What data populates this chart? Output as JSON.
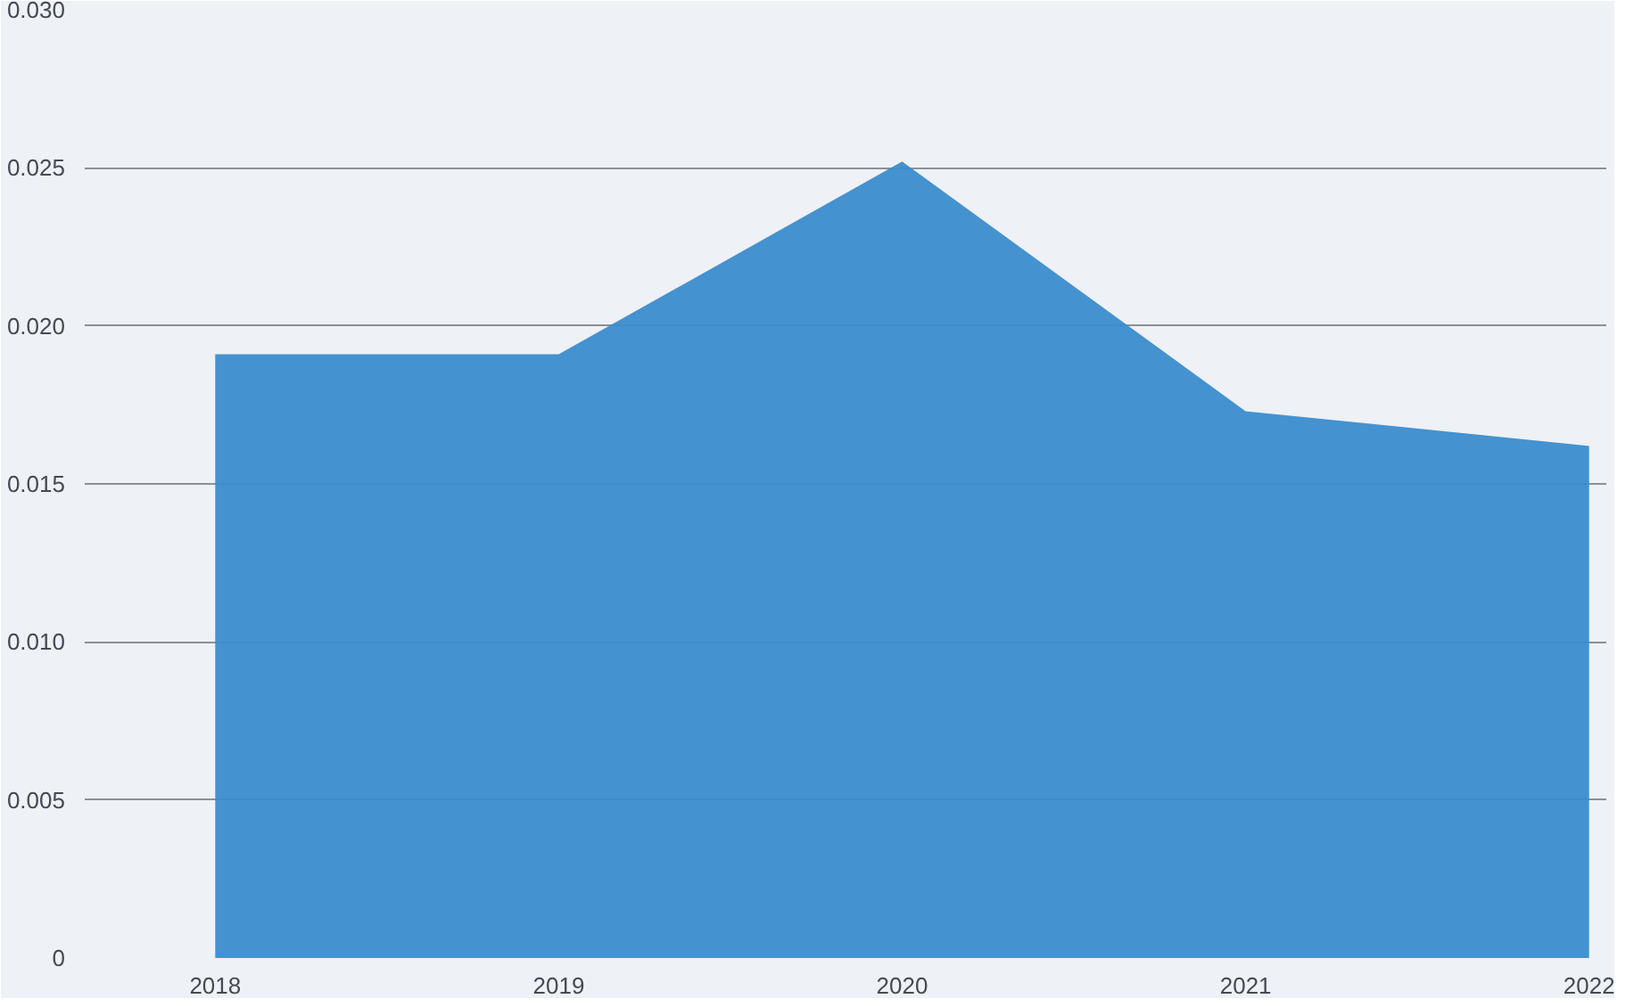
{
  "chart_data": {
    "type": "area",
    "x": [
      2018,
      2019,
      2020,
      2021,
      2022
    ],
    "values": [
      0.0191,
      0.0191,
      0.0252,
      0.0173,
      0.0162
    ],
    "color": "#3a8ccc",
    "xlim": [
      2017.62,
      2022.05
    ],
    "xticks": [
      2018,
      2019,
      2020,
      2021,
      2022
    ],
    "ylim": [
      0,
      0.03
    ],
    "yticks": [
      {
        "value": 0,
        "label": "0"
      },
      {
        "value": 0.005,
        "label": "0.005"
      },
      {
        "value": 0.01,
        "label": "0.010"
      },
      {
        "value": 0.015,
        "label": "0.015"
      },
      {
        "value": 0.02,
        "label": "0.020"
      },
      {
        "value": 0.025,
        "label": "0.025"
      },
      {
        "value": 0.03,
        "label": "0.030"
      }
    ],
    "grid": "y"
  }
}
